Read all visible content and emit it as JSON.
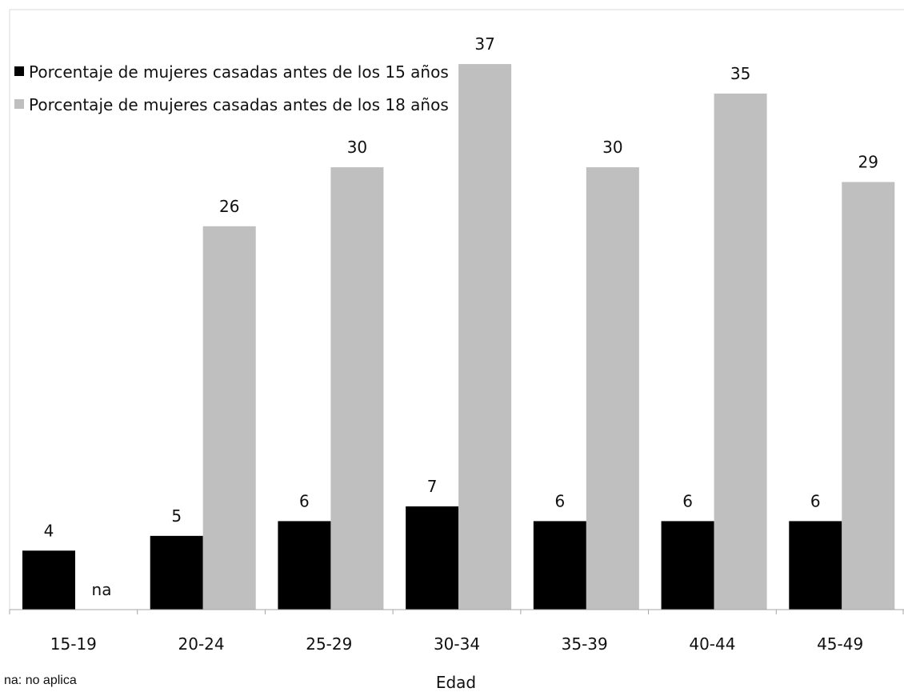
{
  "chart_data": {
    "type": "bar",
    "categories": [
      "15-19",
      "20-24",
      "25-29",
      "30-34",
      "35-39",
      "40-44",
      "45-49"
    ],
    "series": [
      {
        "name": "Porcentaje de mujeres casadas antes de los 15 años",
        "color": "#000000",
        "values": [
          4,
          5,
          6,
          7,
          6,
          6,
          6
        ],
        "labels": [
          "4",
          "5",
          "6",
          "7",
          "6",
          "6",
          "6"
        ]
      },
      {
        "name": "Porcentaje de mujeres casadas antes de los 18 años",
        "color": "#bfbfbf",
        "values": [
          null,
          26,
          30,
          37,
          30,
          35,
          29
        ],
        "labels": [
          "na",
          "26",
          "30",
          "37",
          "30",
          "35",
          "29"
        ]
      }
    ],
    "xlabel": "Edad",
    "ylabel": "",
    "ylim": [
      0,
      42
    ],
    "grid": false,
    "legend_position": "top-left",
    "note": "na: no aplica"
  }
}
